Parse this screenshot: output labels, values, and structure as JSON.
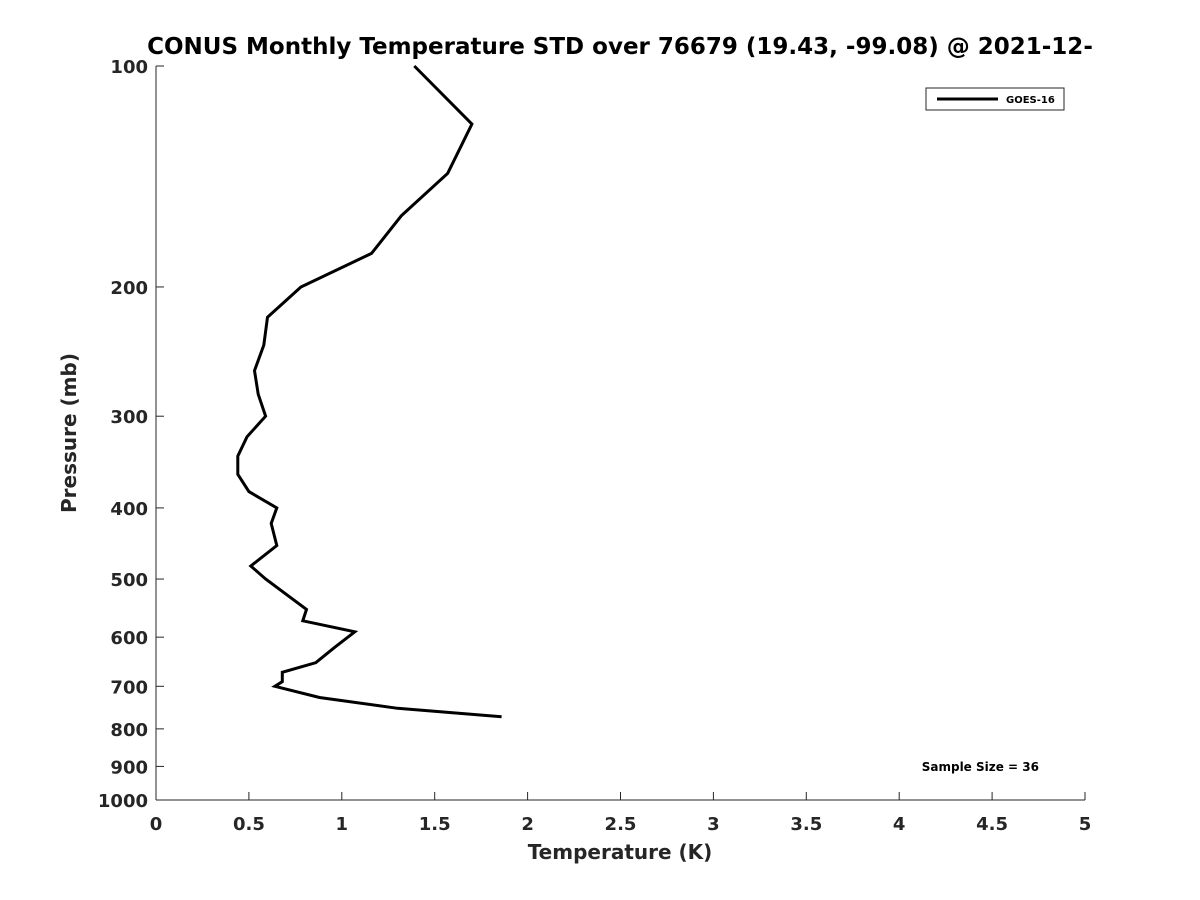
{
  "chart_data": {
    "type": "line",
    "title": "CONUS Monthly Temperature STD over 76679 (19.43, -99.08) @ 2021-12-",
    "xlabel": "Temperature (K)",
    "ylabel": "Pressure (mb)",
    "xlim": [
      0,
      5
    ],
    "ylim": [
      1000,
      100
    ],
    "yscale": "log",
    "y_reversed": true,
    "grid": false,
    "legend_position": "top-right",
    "x_ticks": [
      0,
      0.5,
      1,
      1.5,
      2,
      2.5,
      3,
      3.5,
      4,
      4.5,
      5
    ],
    "x_tick_labels": [
      "0",
      "0.5",
      "1",
      "1.5",
      "2",
      "2.5",
      "3",
      "3.5",
      "4",
      "4.5",
      "5"
    ],
    "y_ticks": [
      100,
      200,
      300,
      400,
      500,
      600,
      700,
      800,
      900,
      1000
    ],
    "y_tick_labels": [
      "100",
      "200",
      "300",
      "400",
      "500",
      "600",
      "700",
      "800",
      "900",
      "1000"
    ],
    "annotation": "Sample Size = 36",
    "series": [
      {
        "name": "GOES-16",
        "color": "#000000",
        "x": [
          1.39,
          1.7,
          1.57,
          1.32,
          1.16,
          0.78,
          0.6,
          0.58,
          0.53,
          0.55,
          0.59,
          0.49,
          0.44,
          0.44,
          0.5,
          0.65,
          0.62,
          0.65,
          0.51,
          0.59,
          0.81,
          0.79,
          1.07,
          0.96,
          0.86,
          0.68,
          0.68,
          0.64,
          0.88,
          1.3,
          1.86
        ],
        "y": [
          100,
          120,
          140,
          160,
          180,
          200,
          220,
          240,
          260,
          280,
          300,
          320,
          340,
          360,
          380,
          400,
          420,
          450,
          480,
          500,
          550,
          570,
          590,
          620,
          650,
          670,
          690,
          700,
          725,
          750,
          770
        ]
      }
    ]
  }
}
